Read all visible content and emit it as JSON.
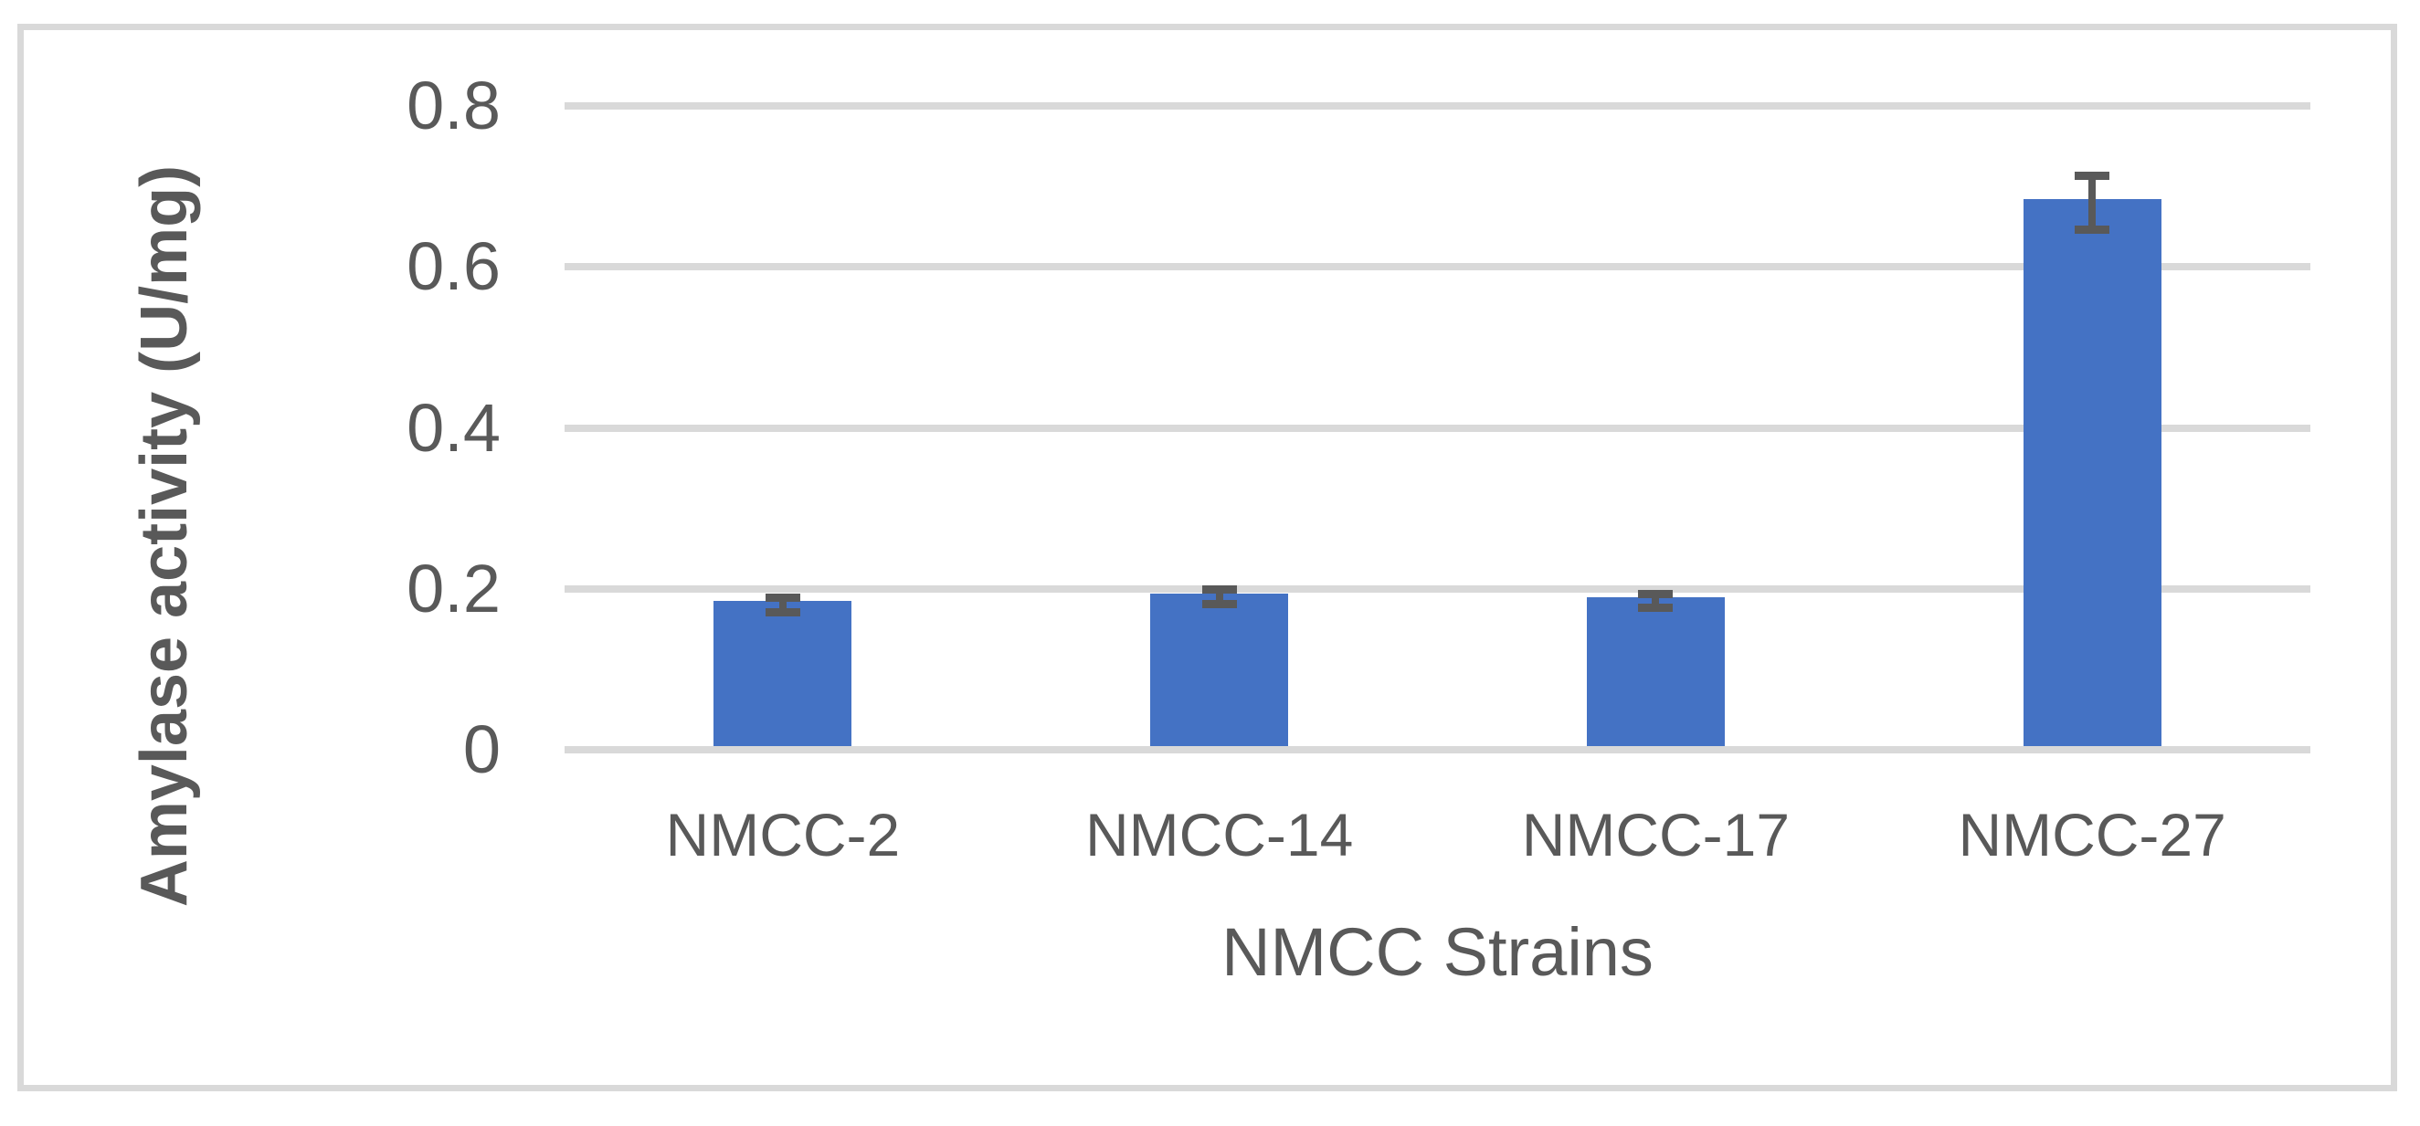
{
  "chart_data": {
    "type": "bar",
    "categories": [
      "NMCC-2",
      "NMCC-14",
      "NMCC-17",
      "NMCC-27"
    ],
    "values": [
      0.18,
      0.19,
      0.185,
      0.68
    ],
    "error_bars": [
      0.01,
      0.01,
      0.009,
      0.034
    ],
    "xlabel": "NMCC Strains",
    "ylabel": "Amylase activity (U/mg)",
    "ylim": [
      0,
      0.8
    ],
    "yticks": [
      0.8,
      0.6,
      0.4,
      0.2,
      0
    ],
    "ytick_labels": [
      "0.8",
      "0.6",
      "0.4",
      "0.2",
      "0"
    ],
    "grid": "horizontal",
    "legend": "none",
    "bar_color": "#4472C4",
    "error_bar_color": "#595959",
    "gridline_color": "#D9D9D9",
    "frame_color": "#D9D9D9",
    "text_color": "#595959",
    "background_color": "#FFFFFF"
  }
}
